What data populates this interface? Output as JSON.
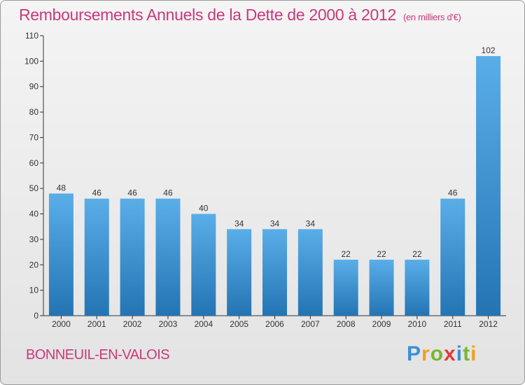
{
  "title": "Remboursements Annuels de la Dette de 2000 à 2012",
  "subtitle": "(en milliers d'€)",
  "town": "BONNEUIL-EN-VALOIS",
  "logo": {
    "text": "Proxiti",
    "letters": [
      "P",
      "r",
      "o",
      "x",
      "i",
      "t",
      "i"
    ],
    "colors": [
      "#3c8fd6",
      "#f0a020",
      "#7ab530",
      "#e03a3a",
      "#3c8fd6",
      "#7ab530",
      "#f0a020"
    ]
  },
  "colors": {
    "title": "#c8397c",
    "bar_top": "#5aaee8",
    "bar_bottom": "#2474b4",
    "axis": "#333333"
  },
  "chart_data": {
    "type": "bar",
    "title": "Remboursements Annuels de la Dette de 2000 à 2012",
    "subtitle": "(en milliers d'€)",
    "categories": [
      "2000",
      "2001",
      "2002",
      "2003",
      "2004",
      "2005",
      "2006",
      "2007",
      "2008",
      "2009",
      "2010",
      "2011",
      "2012"
    ],
    "values": [
      48,
      46,
      46,
      46,
      40,
      34,
      34,
      34,
      22,
      22,
      22,
      46,
      102
    ],
    "data_labels": [
      "48",
      "46",
      "46",
      "46",
      "40",
      "34",
      "34",
      "34",
      "22",
      "22",
      "22",
      "46",
      "102"
    ],
    "yticks": [
      0,
      10,
      20,
      30,
      40,
      50,
      60,
      70,
      80,
      90,
      100,
      110
    ],
    "ylim": [
      0,
      110
    ],
    "xlabel": "",
    "ylabel": "",
    "grid": false,
    "legend": "none"
  }
}
